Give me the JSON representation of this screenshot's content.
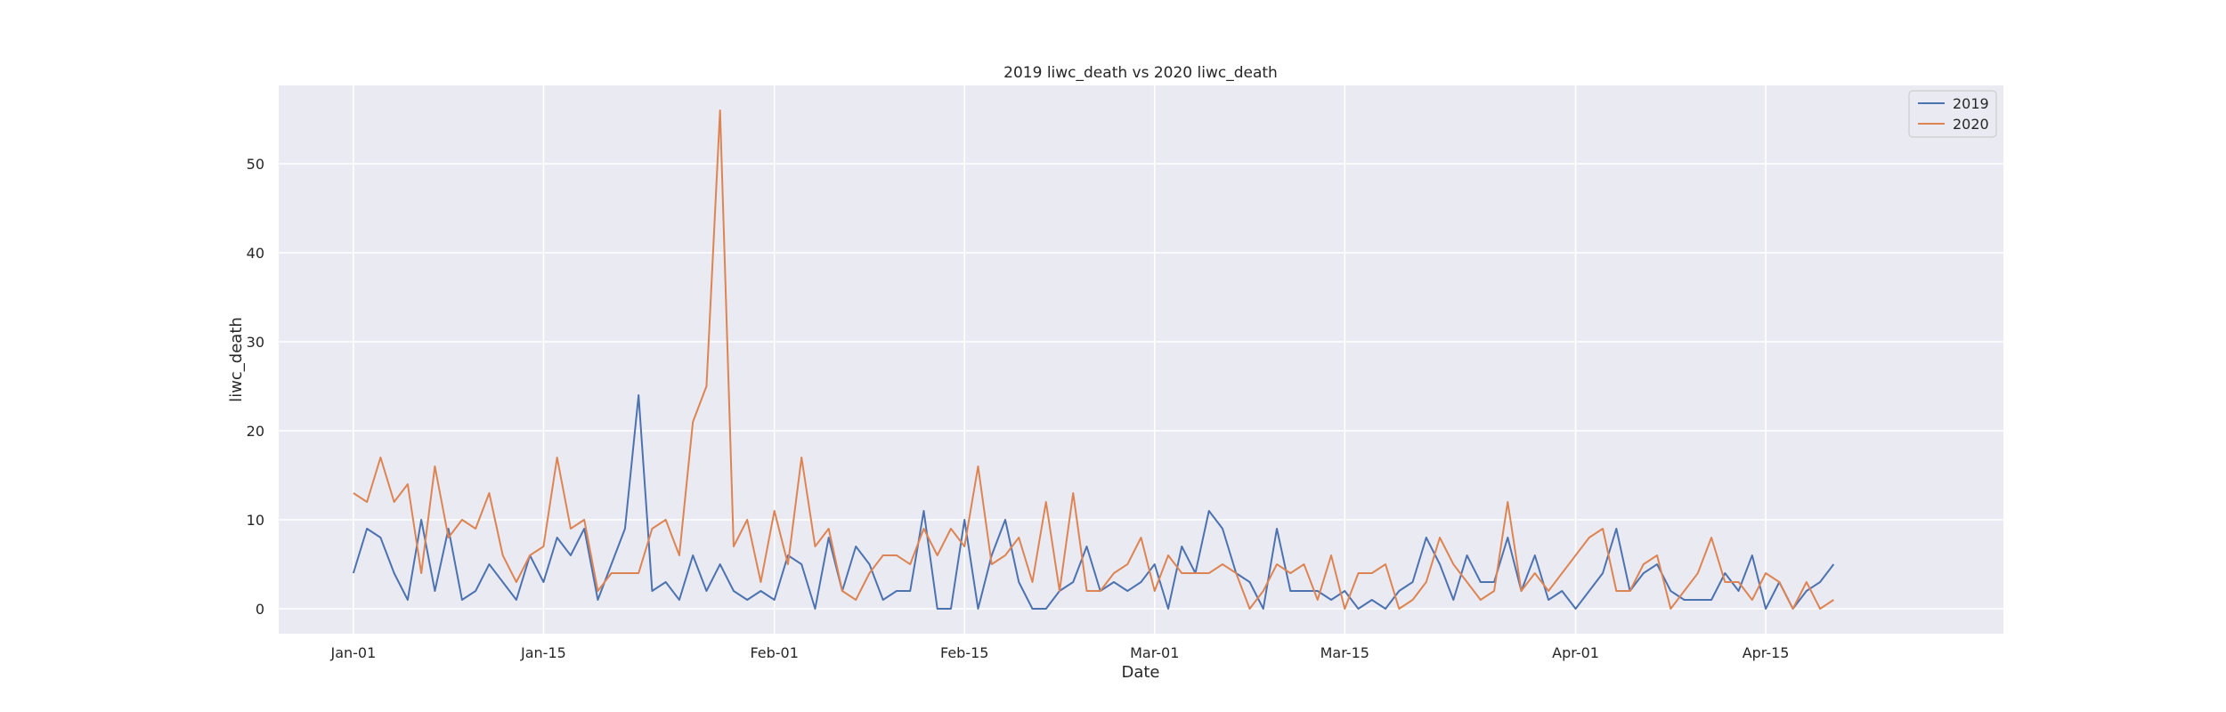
{
  "chart_data": {
    "type": "line",
    "title": "2019 liwc_death vs 2020 liwc_death",
    "xlabel": "Date",
    "ylabel": "liwc_death",
    "x_start": "Jan-01",
    "x_range_days": [
      -5.5,
      121.5
    ],
    "ylim": [
      -2.8,
      58.8
    ],
    "yticks": [
      0,
      10,
      20,
      30,
      40,
      50
    ],
    "xticks": [
      {
        "day": 0,
        "label": "Jan-01"
      },
      {
        "day": 14,
        "label": "Jan-15"
      },
      {
        "day": 31,
        "label": "Feb-01"
      },
      {
        "day": 45,
        "label": "Feb-15"
      },
      {
        "day": 59,
        "label": "Mar-01"
      },
      {
        "day": 73,
        "label": "Mar-15"
      },
      {
        "day": 90,
        "label": "Apr-01"
      },
      {
        "day": 104,
        "label": "Apr-15"
      }
    ],
    "grid": true,
    "legend_position": "top-right",
    "series": [
      {
        "name": "2019",
        "color": "#4c72b0",
        "values": [
          4,
          9,
          8,
          4,
          1,
          10,
          2,
          9,
          1,
          2,
          5,
          3,
          1,
          6,
          3,
          8,
          6,
          9,
          1,
          5,
          9,
          24,
          2,
          3,
          1,
          6,
          2,
          5,
          2,
          1,
          2,
          1,
          6,
          5,
          0,
          8,
          2,
          7,
          5,
          1,
          2,
          2,
          11,
          0,
          0,
          10,
          0,
          6,
          10,
          3,
          0,
          0,
          2,
          3,
          7,
          2,
          3,
          2,
          3,
          5,
          0,
          7,
          4,
          11,
          9,
          4,
          3,
          0,
          9,
          2,
          2,
          2,
          1,
          2,
          0,
          1,
          0,
          2,
          3,
          8,
          5,
          1,
          6,
          3,
          3,
          8,
          2,
          6,
          1,
          2,
          0,
          2,
          4,
          9,
          2,
          4,
          5,
          2,
          1,
          1,
          1,
          4,
          2,
          6,
          0,
          3,
          0,
          2,
          3,
          5
        ]
      },
      {
        "name": "2020",
        "color": "#dd8452",
        "values": [
          13,
          12,
          17,
          12,
          14,
          4,
          16,
          8,
          10,
          9,
          13,
          6,
          3,
          6,
          7,
          17,
          9,
          10,
          2,
          4,
          4,
          4,
          9,
          10,
          6,
          21,
          25,
          56,
          7,
          10,
          3,
          11,
          5,
          17,
          7,
          9,
          2,
          1,
          4,
          6,
          6,
          5,
          9,
          6,
          9,
          7,
          16,
          5,
          6,
          8,
          3,
          12,
          2,
          13,
          2,
          2,
          4,
          5,
          8,
          2,
          6,
          4,
          4,
          4,
          5,
          4,
          0,
          2,
          5,
          4,
          5,
          1,
          6,
          0,
          4,
          4,
          5,
          0,
          1,
          3,
          8,
          5,
          3,
          1,
          2,
          12,
          2,
          4,
          2,
          4,
          6,
          8,
          9,
          2,
          2,
          5,
          6,
          0,
          2,
          4,
          8,
          3,
          3,
          1,
          4,
          3,
          0,
          3,
          0,
          1
        ]
      }
    ]
  }
}
